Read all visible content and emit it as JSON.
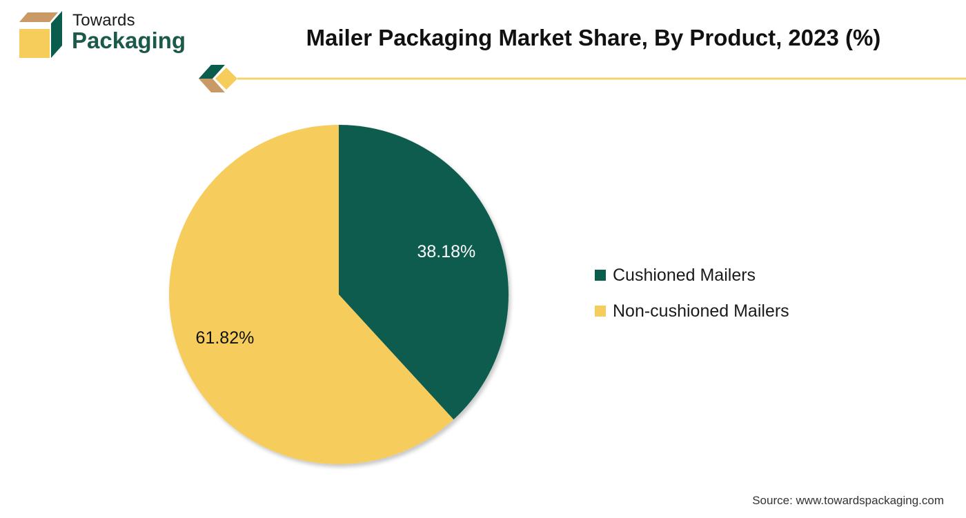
{
  "brand": {
    "name_top": "Towards",
    "name_main": "Packaging"
  },
  "colors": {
    "green": "#0a5c4d",
    "yellow": "#f6cc5b",
    "tan": "#c99a66",
    "brand_text": "#1b5a4a",
    "accent_line": "#f2d46e"
  },
  "chart_data": {
    "type": "pie",
    "title": "Mailer Packaging Market Share, By Product, 2023 (%)",
    "categories": [
      "Cushioned Mailers",
      "Non-cushioned Mailers"
    ],
    "values": [
      38.18,
      61.82
    ],
    "data_labels": [
      "38.18%",
      "61.82%"
    ],
    "colors": [
      "#0a5c4d",
      "#f6cc5b"
    ],
    "legend_position": "right"
  },
  "source": "Source: www.towardspackaging.com"
}
